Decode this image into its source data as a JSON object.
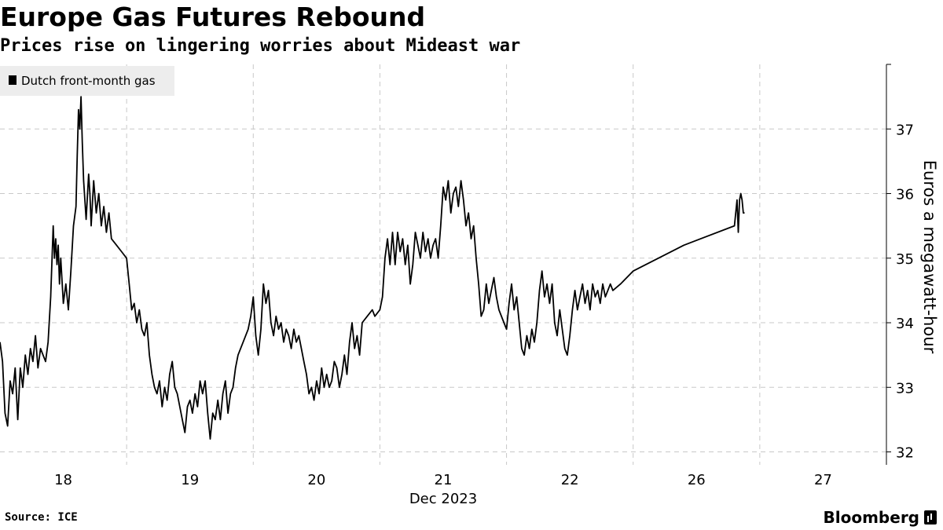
{
  "title": "Europe Gas Futures Rebound",
  "subtitle": "Prices rise on lingering worries about Mideast war",
  "source": "Source: ICE",
  "brand": "Bloomberg",
  "colors": {
    "line": "#000000",
    "grid": "#c8c8c8",
    "legend_bg": "#ededed"
  },
  "chart_data": {
    "type": "line",
    "title": "Europe Gas Futures Rebound",
    "subtitle": "Prices rise on lingering worries about Mideast war",
    "ylabel": "Euros a megawatt-hour",
    "xlabel": "Dec 2023",
    "x_tick_labels": [
      "18",
      "19",
      "20",
      "21",
      "22",
      "26",
      "27"
    ],
    "y_ticks": [
      32,
      33,
      34,
      35,
      36,
      37
    ],
    "ylim": [
      31.8,
      38.0
    ],
    "xlim": [
      0,
      7
    ],
    "grid": true,
    "legend": {
      "placement": "top-left",
      "entries": [
        "Dutch front-month gas"
      ]
    },
    "x_unit": "session index (0=Dec 18 open)",
    "series": [
      {
        "name": "Dutch front-month gas",
        "points": [
          [
            0.0,
            33.7
          ],
          [
            0.02,
            33.4
          ],
          [
            0.04,
            32.6
          ],
          [
            0.06,
            32.4
          ],
          [
            0.08,
            33.1
          ],
          [
            0.1,
            32.9
          ],
          [
            0.12,
            33.3
          ],
          [
            0.14,
            32.5
          ],
          [
            0.16,
            33.3
          ],
          [
            0.18,
            33.0
          ],
          [
            0.2,
            33.5
          ],
          [
            0.22,
            33.2
          ],
          [
            0.24,
            33.6
          ],
          [
            0.26,
            33.4
          ],
          [
            0.28,
            33.8
          ],
          [
            0.3,
            33.3
          ],
          [
            0.32,
            33.6
          ],
          [
            0.34,
            33.5
          ],
          [
            0.36,
            33.4
          ],
          [
            0.38,
            33.7
          ],
          [
            0.4,
            34.4
          ],
          [
            0.42,
            35.5
          ],
          [
            0.43,
            35.0
          ],
          [
            0.44,
            35.3
          ],
          [
            0.45,
            34.9
          ],
          [
            0.46,
            35.2
          ],
          [
            0.47,
            34.6
          ],
          [
            0.48,
            35.0
          ],
          [
            0.5,
            34.3
          ],
          [
            0.52,
            34.6
          ],
          [
            0.54,
            34.2
          ],
          [
            0.56,
            34.8
          ],
          [
            0.58,
            35.5
          ],
          [
            0.6,
            35.8
          ],
          [
            0.61,
            36.6
          ],
          [
            0.62,
            37.3
          ],
          [
            0.63,
            37.0
          ],
          [
            0.64,
            37.5
          ],
          [
            0.65,
            36.8
          ],
          [
            0.66,
            36.2
          ],
          [
            0.68,
            35.6
          ],
          [
            0.7,
            36.3
          ],
          [
            0.71,
            36.0
          ],
          [
            0.72,
            35.5
          ],
          [
            0.74,
            36.2
          ],
          [
            0.76,
            35.7
          ],
          [
            0.78,
            36.0
          ],
          [
            0.8,
            35.5
          ],
          [
            0.82,
            35.8
          ],
          [
            0.84,
            35.4
          ],
          [
            0.86,
            35.7
          ],
          [
            0.88,
            35.3
          ],
          [
            0.92,
            35.2
          ],
          [
            0.96,
            35.1
          ],
          [
            1.0,
            35.0
          ],
          [
            1.02,
            34.6
          ],
          [
            1.04,
            34.2
          ],
          [
            1.06,
            34.3
          ],
          [
            1.08,
            34.0
          ],
          [
            1.1,
            34.2
          ],
          [
            1.12,
            33.9
          ],
          [
            1.14,
            33.8
          ],
          [
            1.16,
            34.0
          ],
          [
            1.18,
            33.5
          ],
          [
            1.2,
            33.2
          ],
          [
            1.22,
            33.0
          ],
          [
            1.24,
            32.9
          ],
          [
            1.26,
            33.1
          ],
          [
            1.28,
            32.7
          ],
          [
            1.3,
            33.0
          ],
          [
            1.32,
            32.8
          ],
          [
            1.34,
            33.2
          ],
          [
            1.36,
            33.4
          ],
          [
            1.38,
            33.0
          ],
          [
            1.4,
            32.9
          ],
          [
            1.42,
            32.7
          ],
          [
            1.44,
            32.5
          ],
          [
            1.46,
            32.3
          ],
          [
            1.48,
            32.7
          ],
          [
            1.5,
            32.8
          ],
          [
            1.52,
            32.6
          ],
          [
            1.54,
            32.9
          ],
          [
            1.56,
            32.7
          ],
          [
            1.58,
            33.1
          ],
          [
            1.6,
            32.9
          ],
          [
            1.62,
            33.1
          ],
          [
            1.64,
            32.6
          ],
          [
            1.66,
            32.2
          ],
          [
            1.68,
            32.6
          ],
          [
            1.7,
            32.5
          ],
          [
            1.72,
            32.8
          ],
          [
            1.74,
            32.5
          ],
          [
            1.76,
            32.9
          ],
          [
            1.78,
            33.1
          ],
          [
            1.8,
            32.6
          ],
          [
            1.82,
            32.9
          ],
          [
            1.84,
            33.0
          ],
          [
            1.86,
            33.3
          ],
          [
            1.88,
            33.5
          ],
          [
            1.92,
            33.7
          ],
          [
            1.96,
            33.9
          ],
          [
            1.98,
            34.1
          ],
          [
            2.0,
            34.4
          ],
          [
            2.02,
            33.8
          ],
          [
            2.04,
            33.5
          ],
          [
            2.06,
            33.9
          ],
          [
            2.08,
            34.6
          ],
          [
            2.1,
            34.3
          ],
          [
            2.12,
            34.5
          ],
          [
            2.14,
            34.0
          ],
          [
            2.16,
            33.8
          ],
          [
            2.18,
            34.1
          ],
          [
            2.2,
            33.9
          ],
          [
            2.22,
            34.0
          ],
          [
            2.24,
            33.7
          ],
          [
            2.26,
            33.9
          ],
          [
            2.28,
            33.8
          ],
          [
            2.3,
            33.6
          ],
          [
            2.32,
            33.9
          ],
          [
            2.34,
            33.7
          ],
          [
            2.36,
            33.8
          ],
          [
            2.38,
            33.6
          ],
          [
            2.4,
            33.4
          ],
          [
            2.42,
            33.2
          ],
          [
            2.44,
            32.9
          ],
          [
            2.46,
            33.0
          ],
          [
            2.48,
            32.8
          ],
          [
            2.5,
            33.1
          ],
          [
            2.52,
            32.9
          ],
          [
            2.54,
            33.3
          ],
          [
            2.56,
            33.0
          ],
          [
            2.58,
            33.2
          ],
          [
            2.6,
            33.0
          ],
          [
            2.62,
            33.1
          ],
          [
            2.64,
            33.4
          ],
          [
            2.66,
            33.3
          ],
          [
            2.68,
            33.0
          ],
          [
            2.7,
            33.2
          ],
          [
            2.72,
            33.5
          ],
          [
            2.74,
            33.2
          ],
          [
            2.76,
            33.7
          ],
          [
            2.78,
            34.0
          ],
          [
            2.8,
            33.6
          ],
          [
            2.82,
            33.8
          ],
          [
            2.84,
            33.5
          ],
          [
            2.86,
            34.0
          ],
          [
            2.9,
            34.1
          ],
          [
            2.94,
            34.2
          ],
          [
            2.96,
            34.1
          ],
          [
            3.0,
            34.2
          ],
          [
            3.02,
            34.4
          ],
          [
            3.04,
            35.0
          ],
          [
            3.06,
            35.3
          ],
          [
            3.08,
            34.9
          ],
          [
            3.1,
            35.4
          ],
          [
            3.12,
            34.9
          ],
          [
            3.14,
            35.4
          ],
          [
            3.16,
            35.1
          ],
          [
            3.18,
            35.3
          ],
          [
            3.2,
            34.9
          ],
          [
            3.22,
            35.2
          ],
          [
            3.24,
            34.6
          ],
          [
            3.26,
            34.9
          ],
          [
            3.28,
            35.4
          ],
          [
            3.3,
            35.2
          ],
          [
            3.32,
            35.0
          ],
          [
            3.34,
            35.4
          ],
          [
            3.36,
            35.1
          ],
          [
            3.38,
            35.3
          ],
          [
            3.4,
            35.0
          ],
          [
            3.42,
            35.2
          ],
          [
            3.44,
            35.3
          ],
          [
            3.46,
            35.0
          ],
          [
            3.48,
            35.5
          ],
          [
            3.5,
            36.1
          ],
          [
            3.52,
            35.9
          ],
          [
            3.54,
            36.2
          ],
          [
            3.56,
            35.7
          ],
          [
            3.58,
            36.0
          ],
          [
            3.6,
            36.1
          ],
          [
            3.62,
            35.8
          ],
          [
            3.64,
            36.2
          ],
          [
            3.66,
            35.9
          ],
          [
            3.68,
            35.5
          ],
          [
            3.7,
            35.7
          ],
          [
            3.72,
            35.3
          ],
          [
            3.74,
            35.5
          ],
          [
            3.76,
            35.0
          ],
          [
            3.78,
            34.6
          ],
          [
            3.8,
            34.1
          ],
          [
            3.82,
            34.2
          ],
          [
            3.84,
            34.6
          ],
          [
            3.86,
            34.3
          ],
          [
            3.88,
            34.5
          ],
          [
            3.9,
            34.7
          ],
          [
            3.92,
            34.4
          ],
          [
            3.94,
            34.2
          ],
          [
            3.98,
            34.0
          ],
          [
            4.0,
            33.9
          ],
          [
            4.02,
            34.3
          ],
          [
            4.04,
            34.6
          ],
          [
            4.06,
            34.2
          ],
          [
            4.08,
            34.4
          ],
          [
            4.1,
            34.0
          ],
          [
            4.12,
            33.6
          ],
          [
            4.14,
            33.5
          ],
          [
            4.16,
            33.8
          ],
          [
            4.18,
            33.6
          ],
          [
            4.2,
            33.9
          ],
          [
            4.22,
            33.7
          ],
          [
            4.24,
            34.0
          ],
          [
            4.26,
            34.5
          ],
          [
            4.28,
            34.8
          ],
          [
            4.3,
            34.4
          ],
          [
            4.32,
            34.6
          ],
          [
            4.34,
            34.3
          ],
          [
            4.36,
            34.6
          ],
          [
            4.38,
            34.0
          ],
          [
            4.4,
            33.8
          ],
          [
            4.42,
            34.2
          ],
          [
            4.44,
            33.9
          ],
          [
            4.46,
            33.6
          ],
          [
            4.48,
            33.5
          ],
          [
            4.5,
            33.8
          ],
          [
            4.52,
            34.2
          ],
          [
            4.54,
            34.5
          ],
          [
            4.56,
            34.2
          ],
          [
            4.58,
            34.4
          ],
          [
            4.6,
            34.6
          ],
          [
            4.62,
            34.3
          ],
          [
            4.64,
            34.5
          ],
          [
            4.66,
            34.2
          ],
          [
            4.68,
            34.6
          ],
          [
            4.7,
            34.4
          ],
          [
            4.72,
            34.5
          ],
          [
            4.74,
            34.3
          ],
          [
            4.76,
            34.6
          ],
          [
            4.78,
            34.4
          ],
          [
            4.8,
            34.5
          ],
          [
            4.82,
            34.6
          ],
          [
            4.84,
            34.5
          ],
          [
            4.9,
            34.6
          ],
          [
            5.0,
            34.8
          ],
          [
            5.4,
            35.2
          ],
          [
            5.8,
            35.5
          ],
          [
            5.82,
            35.9
          ],
          [
            5.83,
            35.4
          ],
          [
            5.84,
            35.9
          ],
          [
            5.85,
            36.0
          ],
          [
            5.86,
            35.9
          ],
          [
            5.87,
            35.7
          ],
          [
            5.88,
            35.7
          ]
        ]
      }
    ]
  }
}
